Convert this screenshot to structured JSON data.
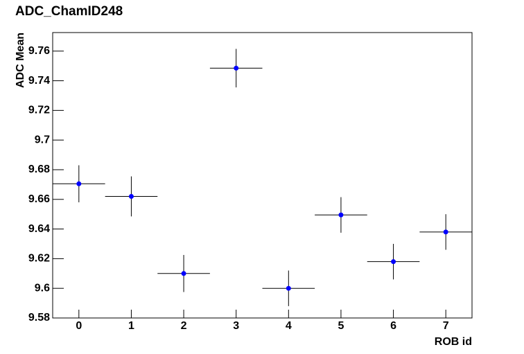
{
  "chart_data": {
    "type": "scatter",
    "title": "ADC_ChamID248",
    "x_label": "ROB id",
    "y_label": "ADC Mean",
    "x": [
      0,
      1,
      2,
      3,
      4,
      5,
      6,
      7
    ],
    "series": [
      {
        "name": "ADC Mean",
        "color": "#0000ff",
        "values": [
          9.6705,
          9.662,
          9.61,
          9.7485,
          9.6,
          9.6495,
          9.618,
          9.638
        ],
        "errors": [
          0.0125,
          0.0135,
          0.0125,
          0.013,
          0.012,
          0.012,
          0.012,
          0.012
        ],
        "x_errors": [
          0.5,
          0.5,
          0.5,
          0.5,
          0.5,
          0.5,
          0.5,
          0.5
        ]
      }
    ],
    "xlim": [
      -0.5,
      7.5
    ],
    "ylim": [
      9.58,
      9.7725
    ],
    "xticks": [
      0,
      1,
      2,
      3,
      4,
      5,
      6,
      7
    ],
    "yticks": [
      9.58,
      9.6,
      9.62,
      9.64,
      9.66,
      9.68,
      9.7,
      9.72,
      9.74,
      9.76
    ]
  }
}
